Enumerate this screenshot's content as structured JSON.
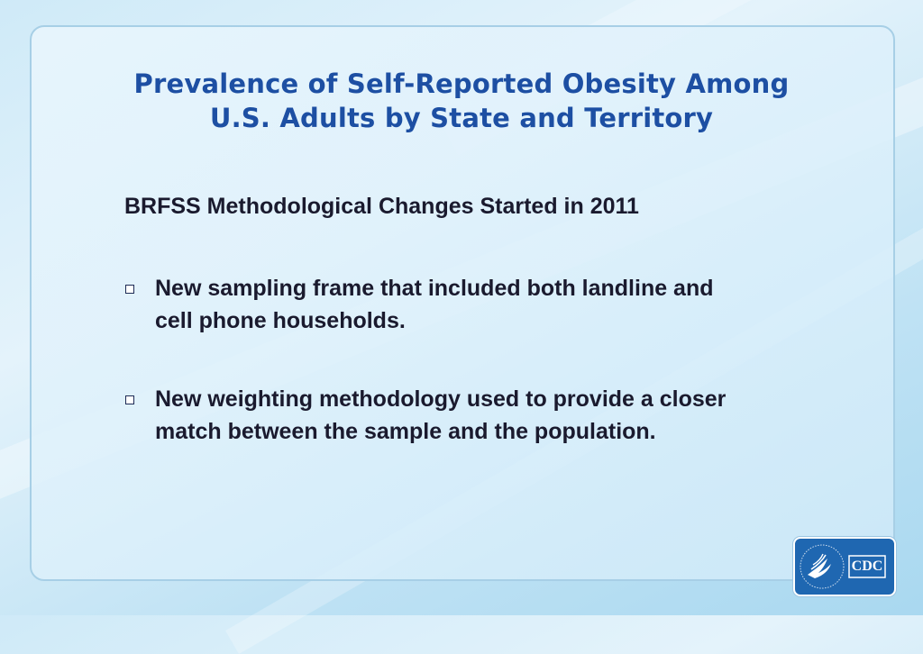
{
  "slide": {
    "title_line1": "Prevalence of Self-Reported Obesity Among",
    "title_line2": "U.S. Adults by State and Territory",
    "subheading": "BRFSS Methodological Changes Started in 2011",
    "bullets": [
      {
        "text_line1": "New sampling frame that included both landline and",
        "text_line2": "cell phone households."
      },
      {
        "text_line1": "New weighting methodology used to provide a closer",
        "text_line2": "match between the sample and the population."
      }
    ]
  },
  "logo": {
    "label": "CDC",
    "icon": "hhs-eagle-icon",
    "color": "#1f67b1"
  },
  "colors": {
    "title": "#1d4fa3",
    "body_text": "#1a1a2e",
    "panel_border": "#a7cfe6"
  }
}
